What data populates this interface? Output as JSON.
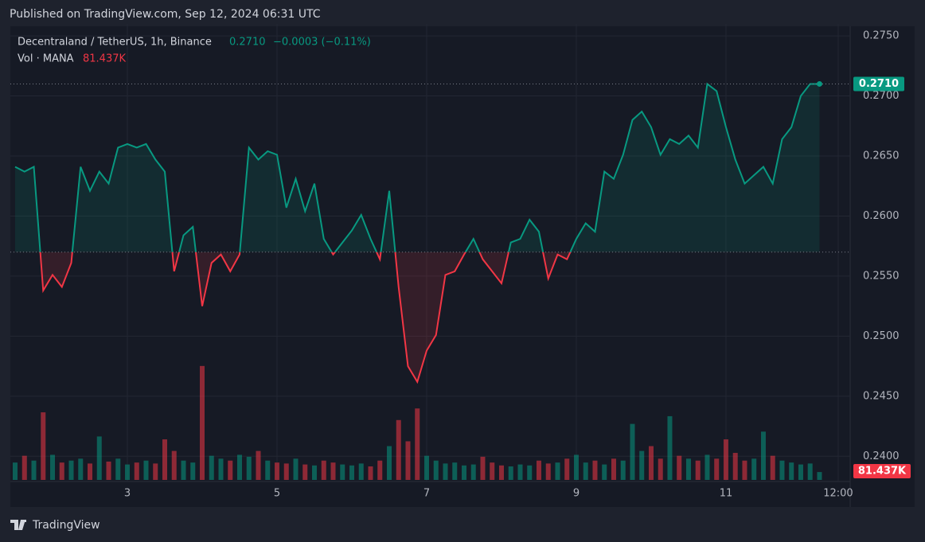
{
  "header": {
    "published": "Published on TradingView.com, Sep 12, 2024 06:31 UTC",
    "brand": "TradingView"
  },
  "chart_data": {
    "type": "baseline",
    "symbol": "Decentraland / TetherUS, 1h, Binance",
    "last_label": "0.2710",
    "change_label": "−0.0003 (−0.11%)",
    "up_color": "#089981",
    "down_color": "#f23645",
    "baseline": 0.257,
    "x": [
      1.5,
      1.625,
      1.75,
      1.875,
      2,
      2.125,
      2.25,
      2.375,
      2.5,
      2.625,
      2.75,
      2.875,
      3,
      3.125,
      3.25,
      3.375,
      3.5,
      3.625,
      3.75,
      3.875,
      4,
      4.125,
      4.25,
      4.375,
      4.5,
      4.625,
      4.75,
      4.875,
      5,
      5.125,
      5.25,
      5.375,
      5.5,
      5.625,
      5.75,
      5.875,
      6,
      6.125,
      6.25,
      6.375,
      6.5,
      6.625,
      6.75,
      6.875,
      7,
      7.125,
      7.25,
      7.375,
      7.5,
      7.625,
      7.75,
      7.875,
      8,
      8.125,
      8.25,
      8.375,
      8.5,
      8.625,
      8.75,
      8.875,
      9,
      9.125,
      9.25,
      9.375,
      9.5,
      9.625,
      9.75,
      9.875,
      10,
      10.125,
      10.25,
      10.375,
      10.5,
      10.625,
      10.75,
      10.875,
      11,
      11.125,
      11.25,
      11.375,
      11.5,
      11.625,
      11.75,
      11.875,
      12,
      12.125,
      12.25
    ],
    "values": [
      0.2641,
      0.2637,
      0.2641,
      0.2538,
      0.2551,
      0.2541,
      0.2561,
      0.2641,
      0.2621,
      0.2637,
      0.2627,
      0.2657,
      0.266,
      0.2657,
      0.266,
      0.2647,
      0.2637,
      0.2554,
      0.2584,
      0.2591,
      0.2525,
      0.2561,
      0.2568,
      0.2554,
      0.2568,
      0.2657,
      0.2647,
      0.2654,
      0.2651,
      0.2607,
      0.2631,
      0.2604,
      0.2627,
      0.2581,
      0.2568,
      0.2578,
      0.2588,
      0.2601,
      0.2581,
      0.2564,
      0.2621,
      0.2541,
      0.2475,
      0.2462,
      0.2488,
      0.2501,
      0.2551,
      0.2554,
      0.2568,
      0.2581,
      0.2564,
      0.2554,
      0.2544,
      0.2578,
      0.2581,
      0.2597,
      0.2587,
      0.2548,
      0.2568,
      0.2564,
      0.2581,
      0.2594,
      0.2587,
      0.2637,
      0.2631,
      0.2651,
      0.268,
      0.2687,
      0.2674,
      0.2651,
      0.2664,
      0.266,
      0.2667,
      0.2657,
      0.271,
      0.2704,
      0.2674,
      0.2647,
      0.2627,
      0.2634,
      0.2641,
      0.2627,
      0.2664,
      0.2674,
      0.27,
      0.271,
      0.271
    ],
    "volume": {
      "name": "Vol · MANA",
      "last_label": "81.437K",
      "ylim": [
        0,
        1500
      ],
      "values": [
        180,
        250,
        200,
        700,
        260,
        180,
        200,
        220,
        170,
        450,
        190,
        220,
        160,
        180,
        200,
        170,
        420,
        300,
        200,
        180,
        1180,
        250,
        220,
        200,
        260,
        240,
        300,
        200,
        180,
        170,
        220,
        160,
        150,
        200,
        180,
        160,
        150,
        170,
        140,
        200,
        350,
        620,
        400,
        740,
        250,
        200,
        170,
        180,
        150,
        160,
        240,
        180,
        150,
        140,
        160,
        150,
        200,
        170,
        180,
        220,
        260,
        180,
        200,
        160,
        220,
        200,
        580,
        300,
        350,
        220,
        660,
        250,
        220,
        200,
        260,
        220,
        420,
        280,
        200,
        220,
        500,
        250,
        200,
        180,
        160,
        170,
        81.437
      ]
    },
    "xlim": [
      1.436,
      12.66
    ],
    "xticks": [
      3,
      5,
      7,
      9,
      11,
      {
        "value": 12.5,
        "label": "12:00"
      }
    ],
    "ylim": [
      0.2379,
      0.276
    ],
    "yticks": [
      {
        "value": 0.24,
        "label": "0.2400"
      },
      {
        "value": 0.245,
        "label": "0.2450"
      },
      {
        "value": 0.25,
        "label": "0.2500"
      },
      {
        "value": 0.255,
        "label": "0.2550"
      },
      {
        "value": 0.26,
        "label": "0.2600"
      },
      {
        "value": 0.265,
        "label": "0.2650"
      },
      {
        "value": 0.27,
        "label": "0.2700"
      },
      {
        "value": 0.275,
        "label": "0.2750"
      }
    ],
    "grid": true
  }
}
